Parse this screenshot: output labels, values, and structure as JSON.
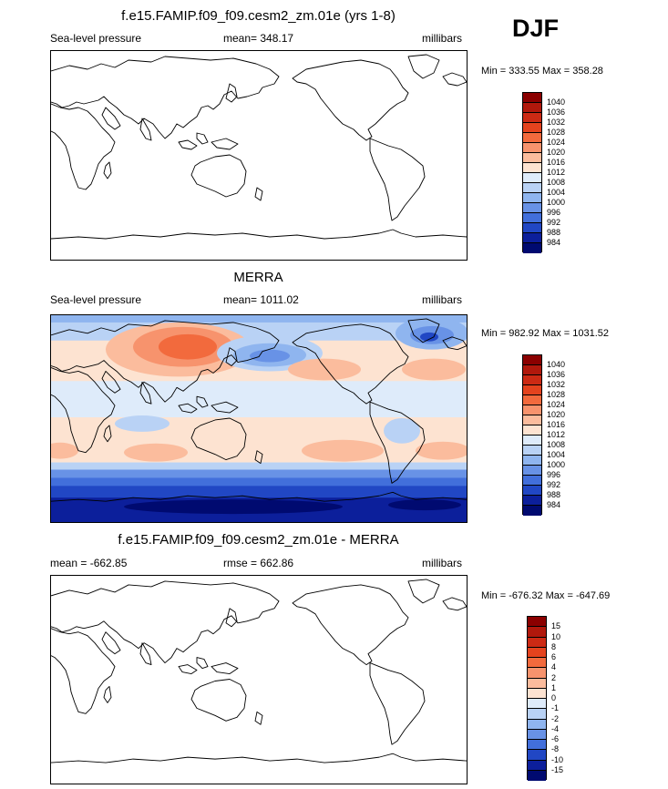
{
  "season": "DJF",
  "panels": [
    {
      "title": "f.e15.FAMIP.f09_f09.cesm2_zm.01e (yrs 1-8)",
      "left_label": "Sea-level pressure",
      "center_label": "mean= 348.17",
      "right_label": "millibars",
      "minmax": "Min = 333.55 Max = 358.28",
      "filled": false
    },
    {
      "title": "MERRA",
      "left_label": "Sea-level pressure",
      "center_label": "mean= 1011.02",
      "right_label": "millibars",
      "minmax": "Min = 982.92 Max = 1031.52",
      "filled": true
    },
    {
      "title": "f.e15.FAMIP.f09_f09.cesm2_zm.01e - MERRA",
      "left_label": "mean = -662.85",
      "center_label": "rmse = 662.86",
      "right_label": "millibars",
      "minmax": "Min = -676.32 Max = -647.69",
      "filled": false
    }
  ],
  "colorbars": {
    "field": {
      "labels": [
        "1040",
        "1036",
        "1032",
        "1028",
        "1024",
        "1020",
        "1016",
        "1012",
        "1008",
        "1004",
        "1000",
        "996",
        "992",
        "988",
        "984"
      ],
      "colors": [
        "#8b0000",
        "#b1180c",
        "#cc2a14",
        "#e4431e",
        "#f26a3d",
        "#f7936d",
        "#fbbc9d",
        "#fde3d1",
        "#deebfa",
        "#b9d2f5",
        "#8fb5ef",
        "#6892e6",
        "#426fdb",
        "#2147c4",
        "#0c1f9b",
        "#000a70"
      ]
    },
    "diff": {
      "labels": [
        "15",
        "10",
        "8",
        "6",
        "4",
        "2",
        "1",
        "0",
        "-1",
        "-2",
        "-4",
        "-6",
        "-8",
        "-10",
        "-15"
      ],
      "colors": [
        "#8b0000",
        "#b1180c",
        "#cc2a14",
        "#e4431e",
        "#f26a3d",
        "#f7936d",
        "#fbbc9d",
        "#fde3d1",
        "#deebfa",
        "#b9d2f5",
        "#8fb5ef",
        "#6892e6",
        "#426fdb",
        "#2147c4",
        "#0c1f9b",
        "#000a70"
      ]
    }
  },
  "map_colors": {
    "deep_blue": "#0c1f9b",
    "blue": "#2147c4",
    "mid_blue": "#6892e6",
    "light_blue": "#b9d2f5",
    "pale_blue": "#deebfa",
    "pale_red": "#fde3d1",
    "light_red": "#fbbc9d",
    "red": "#f26a3d",
    "dark_red": "#cc2a14"
  }
}
